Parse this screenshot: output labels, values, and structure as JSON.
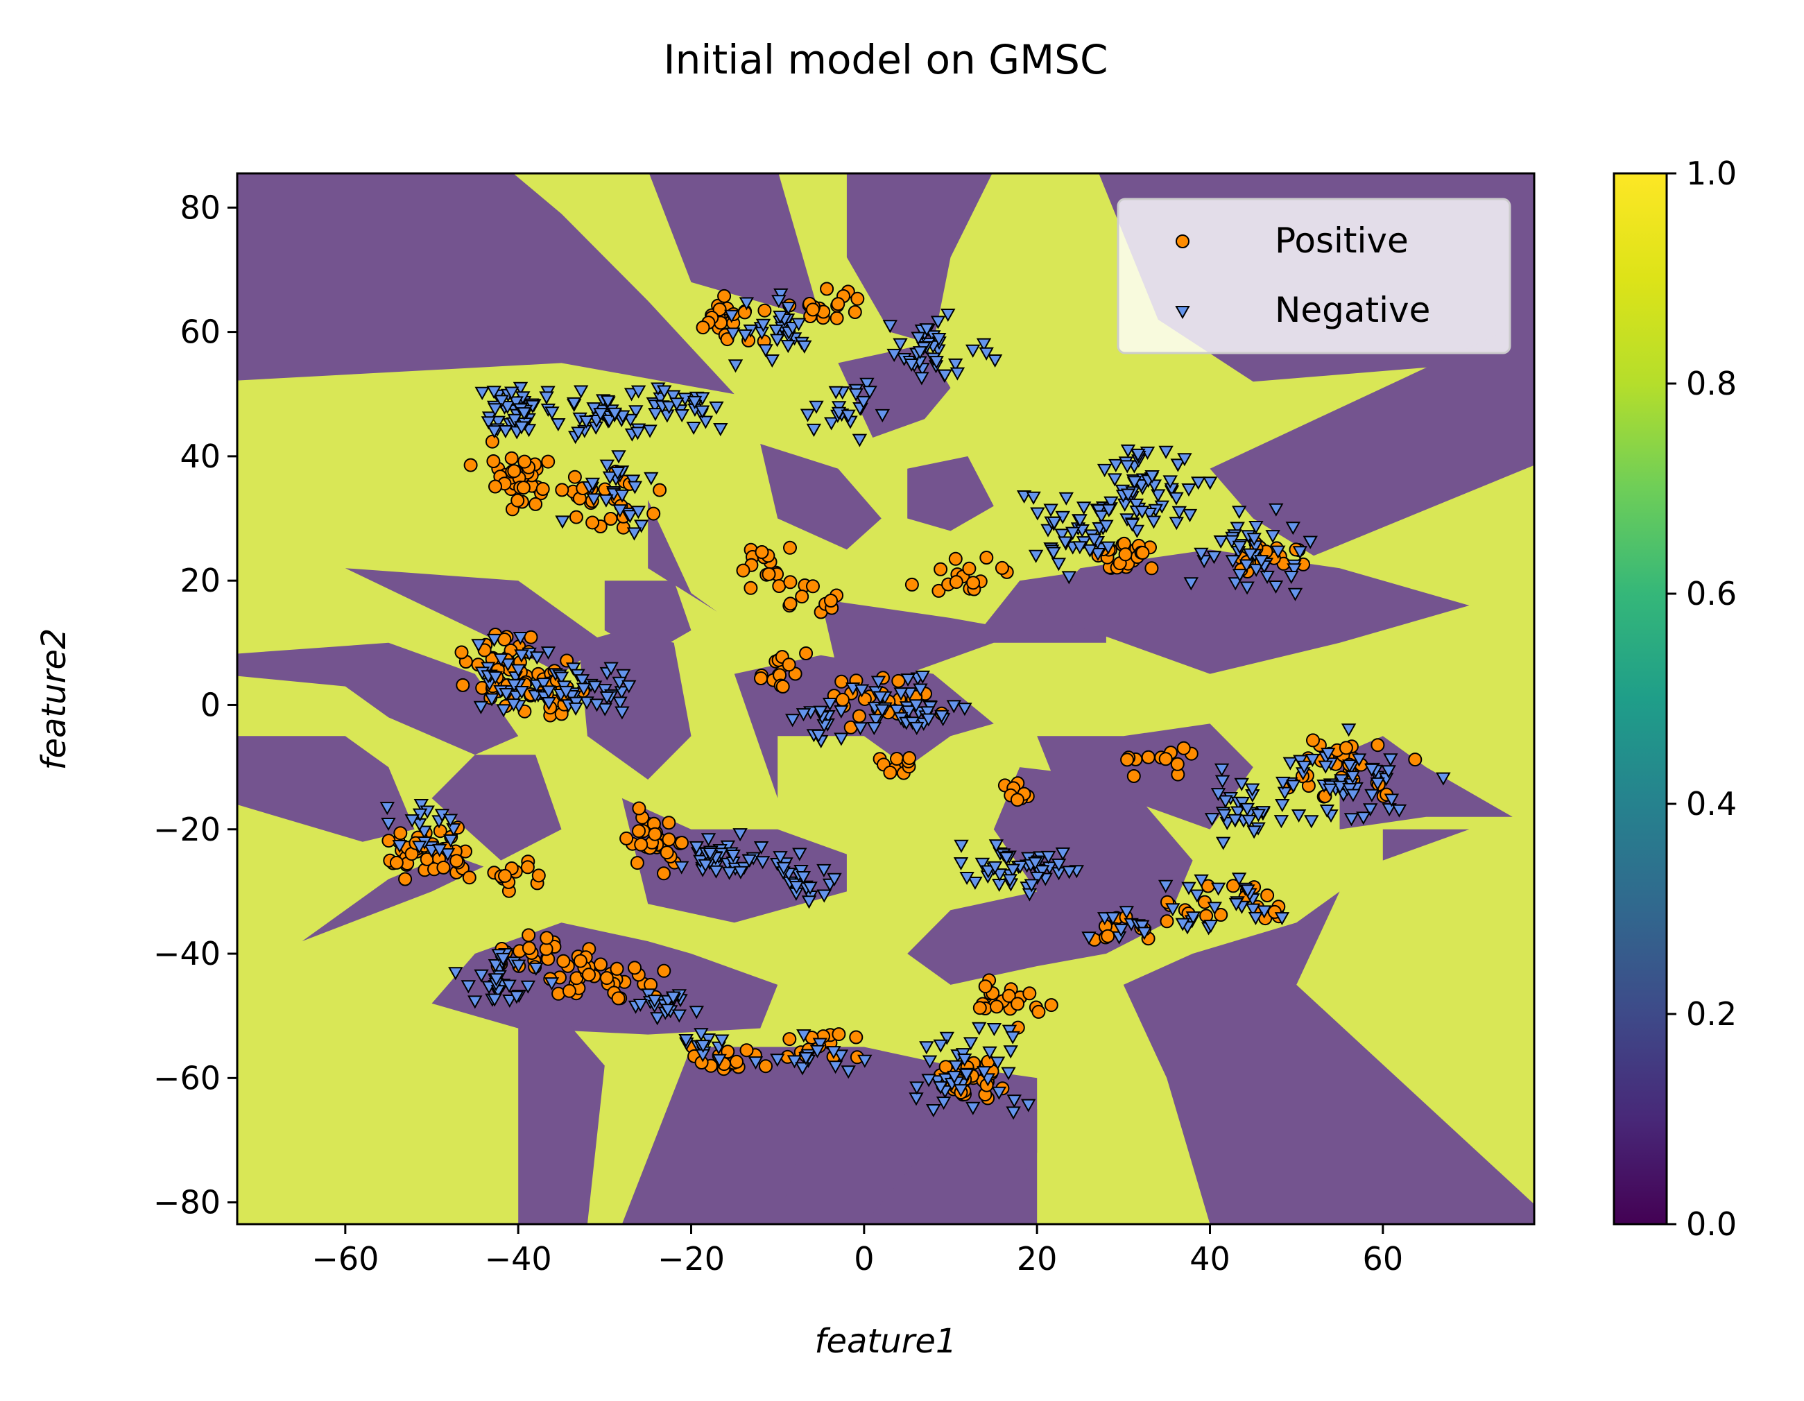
{
  "chart_data": {
    "type": "scatter",
    "title": "Initial model on GMSC",
    "xlabel": "feature1",
    "ylabel": "feature2",
    "xlim": [
      -72.5,
      77.5
    ],
    "ylim": [
      -83.5,
      85.5
    ],
    "xticks": [
      -60,
      -40,
      -20,
      0,
      20,
      40,
      60
    ],
    "xtick_labels": [
      "−60",
      "−40",
      "−20",
      "0",
      "20",
      "40",
      "60"
    ],
    "yticks": [
      -80,
      -60,
      -40,
      -20,
      0,
      20,
      40,
      60,
      80
    ],
    "ytick_labels": [
      "−80",
      "−60",
      "−40",
      "−20",
      "0",
      "20",
      "40",
      "60",
      "80"
    ],
    "background": "decision regions of a classifier (class 0 = purple, class 1 = yellow-green), shown with alpha 0.7",
    "legend": {
      "location": "upper right",
      "entries": [
        "Positive",
        "Negative"
      ]
    },
    "colorbar": {
      "colormap": "viridis",
      "range": [
        0.0,
        1.0
      ],
      "ticks": [
        0.0,
        0.2,
        0.4,
        0.6,
        0.8,
        1.0
      ],
      "tick_labels": [
        "0.0",
        "0.2",
        "0.4",
        "0.6",
        "0.8",
        "1.0"
      ]
    },
    "series": [
      {
        "name": "Positive",
        "marker": "circle",
        "color": "#ff8c00",
        "clusters": [
          {
            "center": [
              -40,
              36
            ],
            "spread": [
              3,
              4
            ],
            "count": 35
          },
          {
            "center": [
              -30,
              33
            ],
            "spread": [
              4,
              3
            ],
            "count": 25
          },
          {
            "center": [
              -42,
              6
            ],
            "spread": [
              3,
              4
            ],
            "count": 40
          },
          {
            "center": [
              -36,
              2
            ],
            "spread": [
              3,
              3
            ],
            "count": 25
          },
          {
            "center": [
              -50,
              -24
            ],
            "spread": [
              4,
              2.5
            ],
            "count": 40
          },
          {
            "center": [
              -40,
              -28
            ],
            "spread": [
              3,
              2
            ],
            "count": 12
          },
          {
            "center": [
              -24,
              -22
            ],
            "spread": [
              2,
              3
            ],
            "count": 30
          },
          {
            "center": [
              -38,
              -40
            ],
            "spread": [
              4,
              2
            ],
            "count": 20
          },
          {
            "center": [
              -30,
              -44
            ],
            "spread": [
              5,
              3
            ],
            "count": 35
          },
          {
            "center": [
              -16,
              62
            ],
            "spread": [
              3,
              2.5
            ],
            "count": 22
          },
          {
            "center": [
              -6,
              64
            ],
            "spread": [
              4,
              2
            ],
            "count": 18
          },
          {
            "center": [
              -12,
              22
            ],
            "spread": [
              2,
              3
            ],
            "count": 14
          },
          {
            "center": [
              -7,
              17
            ],
            "spread": [
              3,
              2
            ],
            "count": 12
          },
          {
            "center": [
              -10,
              5
            ],
            "spread": [
              3,
              3
            ],
            "count": 14
          },
          {
            "center": [
              2,
              0
            ],
            "spread": [
              4,
              4
            ],
            "count": 22
          },
          {
            "center": [
              4,
              -10
            ],
            "spread": [
              2,
              1.5
            ],
            "count": 10
          },
          {
            "center": [
              12,
              21
            ],
            "spread": [
              4,
              2
            ],
            "count": 16
          },
          {
            "center": [
              18,
              -14
            ],
            "spread": [
              2,
              1.2
            ],
            "count": 8
          },
          {
            "center": [
              30,
              24
            ],
            "spread": [
              3,
              2
            ],
            "count": 22
          },
          {
            "center": [
              34,
              -9
            ],
            "spread": [
              4,
              1.5
            ],
            "count": 12
          },
          {
            "center": [
              46,
              24
            ],
            "spread": [
              3,
              2
            ],
            "count": 20
          },
          {
            "center": [
              56,
              -10
            ],
            "spread": [
              5,
              4
            ],
            "count": 30
          },
          {
            "center": [
              42,
              -32
            ],
            "spread": [
              4,
              3
            ],
            "count": 20
          },
          {
            "center": [
              30,
              -36
            ],
            "spread": [
              3,
              2
            ],
            "count": 12
          },
          {
            "center": [
              17,
              -48
            ],
            "spread": [
              3,
              3
            ],
            "count": 20
          },
          {
            "center": [
              13,
              -60
            ],
            "spread": [
              3,
              3
            ],
            "count": 30
          },
          {
            "center": [
              -5,
              -55
            ],
            "spread": [
              4,
              2
            ],
            "count": 15
          },
          {
            "center": [
              -16,
              -57
            ],
            "spread": [
              4,
              2
            ],
            "count": 15
          }
        ]
      },
      {
        "name": "Negative",
        "marker": "triangle_down",
        "color": "#6495ed",
        "clusters": [
          {
            "center": [
              -40,
              47
            ],
            "spread": [
              3,
              3
            ],
            "count": 45
          },
          {
            "center": [
              -30,
              47
            ],
            "spread": [
              4,
              3
            ],
            "count": 35
          },
          {
            "center": [
              -20,
              48
            ],
            "spread": [
              5,
              3
            ],
            "count": 25
          },
          {
            "center": [
              -30,
              35
            ],
            "spread": [
              4,
              4
            ],
            "count": 25
          },
          {
            "center": [
              -10,
              60
            ],
            "spread": [
              4,
              3
            ],
            "count": 30
          },
          {
            "center": [
              8,
              57
            ],
            "spread": [
              5,
              5
            ],
            "count": 40
          },
          {
            "center": [
              -2,
              47
            ],
            "spread": [
              3,
              3
            ],
            "count": 20
          },
          {
            "center": [
              -40,
              5
            ],
            "spread": [
              3,
              4
            ],
            "count": 35
          },
          {
            "center": [
              -32,
              3
            ],
            "spread": [
              4,
              3
            ],
            "count": 35
          },
          {
            "center": [
              -50,
              -20
            ],
            "spread": [
              3,
              3
            ],
            "count": 20
          },
          {
            "center": [
              -17,
              -25
            ],
            "spread": [
              4,
              2.5
            ],
            "count": 35
          },
          {
            "center": [
              -8,
              -28
            ],
            "spread": [
              3,
              3
            ],
            "count": 25
          },
          {
            "center": [
              -42,
              -44
            ],
            "spread": [
              3,
              3
            ],
            "count": 30
          },
          {
            "center": [
              -24,
              -48
            ],
            "spread": [
              3,
              2
            ],
            "count": 20
          },
          {
            "center": [
              -18,
              -55
            ],
            "spread": [
              3,
              2
            ],
            "count": 12
          },
          {
            "center": [
              -5,
              -57
            ],
            "spread": [
              4,
              2
            ],
            "count": 15
          },
          {
            "center": [
              12,
              -58
            ],
            "spread": [
              5,
              5
            ],
            "count": 40
          },
          {
            "center": [
              4,
              0
            ],
            "spread": [
              5,
              4
            ],
            "count": 40
          },
          {
            "center": [
              -5,
              -3
            ],
            "spread": [
              3,
              3
            ],
            "count": 15
          },
          {
            "center": [
              18,
              -26
            ],
            "spread": [
              5,
              2.5
            ],
            "count": 45
          },
          {
            "center": [
              24,
              28
            ],
            "spread": [
              4,
              5
            ],
            "count": 40
          },
          {
            "center": [
              33,
              35
            ],
            "spread": [
              5,
              5
            ],
            "count": 60
          },
          {
            "center": [
              44,
              24
            ],
            "spread": [
              5,
              5
            ],
            "count": 40
          },
          {
            "center": [
              56,
              -12
            ],
            "spread": [
              6,
              5
            ],
            "count": 50
          },
          {
            "center": [
              44,
              -16
            ],
            "spread": [
              4,
              4
            ],
            "count": 30
          },
          {
            "center": [
              42,
              -32
            ],
            "spread": [
              5,
              3
            ],
            "count": 25
          },
          {
            "center": [
              30,
              -36
            ],
            "spread": [
              3,
              3
            ],
            "count": 10
          }
        ]
      }
    ]
  }
}
